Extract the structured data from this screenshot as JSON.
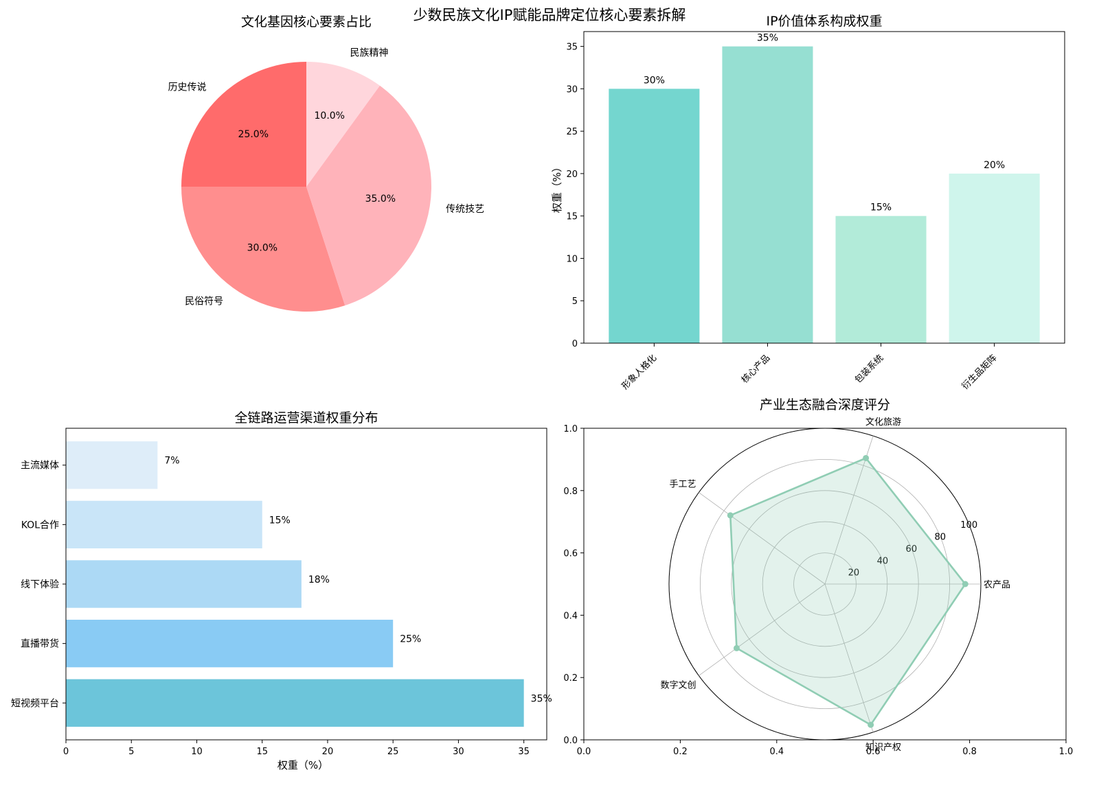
{
  "figure_title": "少数民族文化IP赋能品牌定位核心要素拆解",
  "colors": {
    "pie": [
      "#ff6b6b",
      "#ff8e8e",
      "#ffb3ba",
      "#ffd6dc"
    ],
    "bar": [
      "#74d6cf",
      "#96dfd2",
      "#b2ebd9",
      "#cff5ec"
    ],
    "barh": [
      "#6cc5da",
      "#89cbf4",
      "#acd9f5",
      "#c9e5f8",
      "#deedf9"
    ],
    "radar": "#90cdb4"
  },
  "chart_data": [
    {
      "id": "pie",
      "type": "pie",
      "title": "文化基因核心要素占比",
      "labels": [
        "历史传说",
        "民俗符号",
        "传统技艺",
        "民族精神"
      ],
      "values": [
        25.0,
        30.0,
        35.0,
        10.0
      ],
      "value_labels": [
        "25.0%",
        "30.0%",
        "35.0%",
        "10.0%"
      ],
      "start_angle_deg": 90,
      "direction": "counterclockwise"
    },
    {
      "id": "bar",
      "type": "bar",
      "title": "IP价值体系构成权重",
      "categories": [
        "形象人格化",
        "核心产品",
        "包装系统",
        "衍生品矩阵"
      ],
      "values": [
        30,
        35,
        15,
        20
      ],
      "value_labels": [
        "30%",
        "35%",
        "15%",
        "20%"
      ],
      "ylabel": "权重（%）",
      "ylim": [
        0,
        36.75
      ],
      "yticks": [
        0,
        5,
        10,
        15,
        20,
        25,
        30,
        35
      ],
      "ytick_labels": [
        "0",
        "5",
        "10",
        "15",
        "20",
        "25",
        "30",
        "35"
      ]
    },
    {
      "id": "barh",
      "type": "bar",
      "orientation": "horizontal",
      "title": "全链路运营渠道权重分布",
      "categories": [
        "短视频平台",
        "直播带货",
        "线下体验",
        "KOL合作",
        "主流媒体"
      ],
      "values": [
        35,
        25,
        18,
        15,
        7
      ],
      "value_labels": [
        "35%",
        "25%",
        "18%",
        "15%",
        "7%"
      ],
      "xlabel": "权重（%）",
      "xlim": [
        0,
        36.75
      ],
      "xticks": [
        0,
        5,
        10,
        15,
        20,
        25,
        30,
        35
      ],
      "xtick_labels": [
        "0",
        "5",
        "10",
        "15",
        "20",
        "25",
        "30",
        "35"
      ]
    },
    {
      "id": "radar",
      "type": "radar",
      "title": "产业生态融合深度评分",
      "categories": [
        "农产品",
        "文化旅游",
        "手工艺",
        "数字文创",
        "知识产权"
      ],
      "values": [
        90,
        85,
        75,
        70,
        95
      ],
      "rmax": 100,
      "rticks": [
        20,
        40,
        60,
        80,
        100
      ],
      "rtick_labels": [
        "20",
        "40",
        "60",
        "80",
        "100"
      ],
      "frame_ticks": [
        "0.0",
        "0.2",
        "0.4",
        "0.6",
        "0.8",
        "1.0"
      ]
    }
  ]
}
